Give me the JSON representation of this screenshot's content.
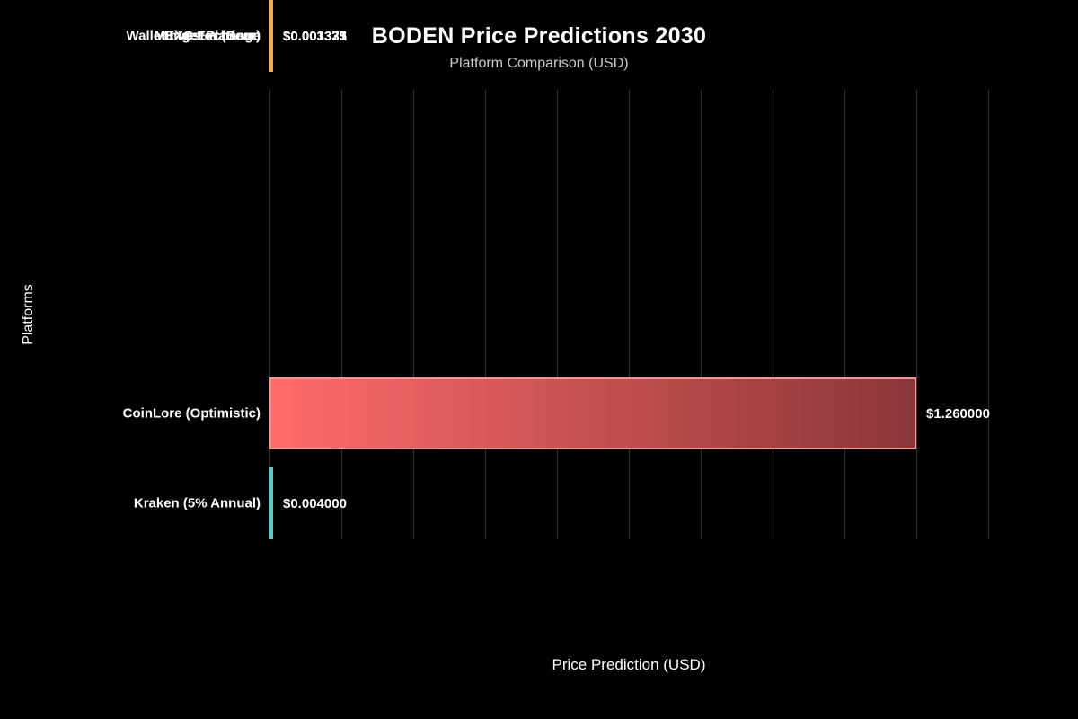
{
  "chart_data": {
    "type": "bar",
    "orientation": "horizontal",
    "title": "BODEN Price Predictions 2030",
    "subtitle": "Platform Comparison (USD)",
    "xlabel": "Price Prediction (USD)",
    "ylabel": "Platforms",
    "xlim": [
      0,
      1.4
    ],
    "grid": true,
    "gridline_count": 11,
    "tick_labels_shown": false,
    "categories": [
      "CoinLore (Optimistic)",
      "Kraken (5% Annual)",
      "MEXC Exchange",
      "Bitget Platform",
      "WalletInvestor (Bear)"
    ],
    "values": [
      1.26,
      0.004,
      0.003373,
      0.003331,
      0.001325
    ],
    "bars": [
      {
        "label": "CoinLore (Optimistic)",
        "value": 1.26,
        "value_label": "$1.260000",
        "color": "#ff6b6b",
        "gradient": [
          "#ff6b6b",
          "#8a3638"
        ],
        "border_color": "#ff9494"
      },
      {
        "label": "Kraken (5% Annual)",
        "value": 0.004,
        "value_label": "$0.004000",
        "color": "#4ecdc4"
      },
      {
        "label": "MEXC Exchange",
        "value": 0.003373,
        "value_label": "$0.003373",
        "color": "#45b7d1"
      },
      {
        "label": "Bitget Platform",
        "value": 0.003331,
        "value_label": "$0.003331",
        "color": "#96ceb4"
      },
      {
        "label": "WalletInvestor (Bear)",
        "value": 0.001325,
        "value_label": "$0.001325",
        "color": "#f7a84c"
      }
    ],
    "colors": {
      "background": "#000000",
      "grid": "#333333",
      "title_text": "#ffffff",
      "subtitle_text": "#cccccc",
      "label_text": "#ffffff"
    }
  }
}
